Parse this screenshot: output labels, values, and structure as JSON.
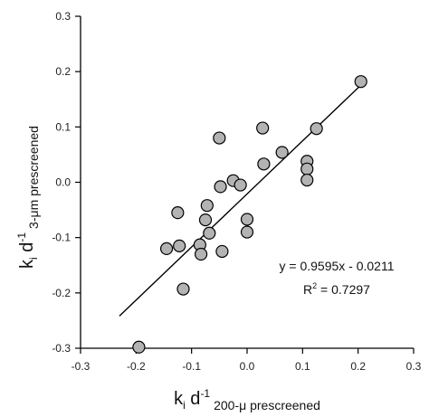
{
  "chart_data": {
    "type": "scatter",
    "xlim": [
      -0.3,
      0.3
    ],
    "ylim": [
      -0.3,
      0.3
    ],
    "x_ticks": [
      -0.3,
      -0.2,
      -0.1,
      0.0,
      0.1,
      0.2,
      0.3
    ],
    "x_tick_labels": [
      "-0.3",
      "-0.2",
      "-0.1",
      "0.0",
      "0.1",
      "0.2",
      "0.3"
    ],
    "y_ticks": [
      -0.3,
      -0.2,
      -0.1,
      0.0,
      0.1,
      0.2,
      0.3
    ],
    "y_tick_labels": [
      "-0.3",
      "-0.2",
      "-0.1",
      "0.0",
      "0.1",
      "0.2",
      "0.3"
    ],
    "xlabel": {
      "main": "k",
      "sub_i": "i",
      "mid": " d",
      "sup": "-1",
      "sub_tail": "200-μ prescreened"
    },
    "ylabel": {
      "main": "k",
      "sub_i": "i",
      "mid": " d",
      "sup": "-1",
      "sub_tail": "3-μm prescreened"
    },
    "grid": false,
    "marker_color": "#b3b3b3",
    "points": [
      {
        "x": -0.195,
        "y": -0.298
      },
      {
        "x": -0.145,
        "y": -0.12
      },
      {
        "x": -0.125,
        "y": -0.055
      },
      {
        "x": -0.122,
        "y": -0.115
      },
      {
        "x": -0.115,
        "y": -0.193
      },
      {
        "x": -0.085,
        "y": -0.113
      },
      {
        "x": -0.083,
        "y": -0.13
      },
      {
        "x": -0.075,
        "y": -0.068
      },
      {
        "x": -0.072,
        "y": -0.042
      },
      {
        "x": -0.068,
        "y": -0.092
      },
      {
        "x": -0.05,
        "y": 0.08
      },
      {
        "x": -0.048,
        "y": -0.008
      },
      {
        "x": -0.045,
        "y": -0.125
      },
      {
        "x": -0.025,
        "y": 0.003
      },
      {
        "x": -0.012,
        "y": -0.005
      },
      {
        "x": 0.0,
        "y": -0.067
      },
      {
        "x": 0.0,
        "y": -0.09
      },
      {
        "x": 0.028,
        "y": 0.098
      },
      {
        "x": 0.03,
        "y": 0.033
      },
      {
        "x": 0.063,
        "y": 0.054
      },
      {
        "x": 0.108,
        "y": 0.038
      },
      {
        "x": 0.108,
        "y": 0.024
      },
      {
        "x": 0.108,
        "y": 0.004
      },
      {
        "x": 0.125,
        "y": 0.097
      },
      {
        "x": 0.205,
        "y": 0.182
      }
    ],
    "regression": {
      "slope": 0.9595,
      "intercept": -0.0211,
      "x_range": [
        -0.23,
        0.205
      ],
      "equation_label": "y = 0.9595x - 0.0211",
      "r2_base": "R",
      "r2_sup": "2",
      "r2_value": " = 0.7297"
    }
  }
}
